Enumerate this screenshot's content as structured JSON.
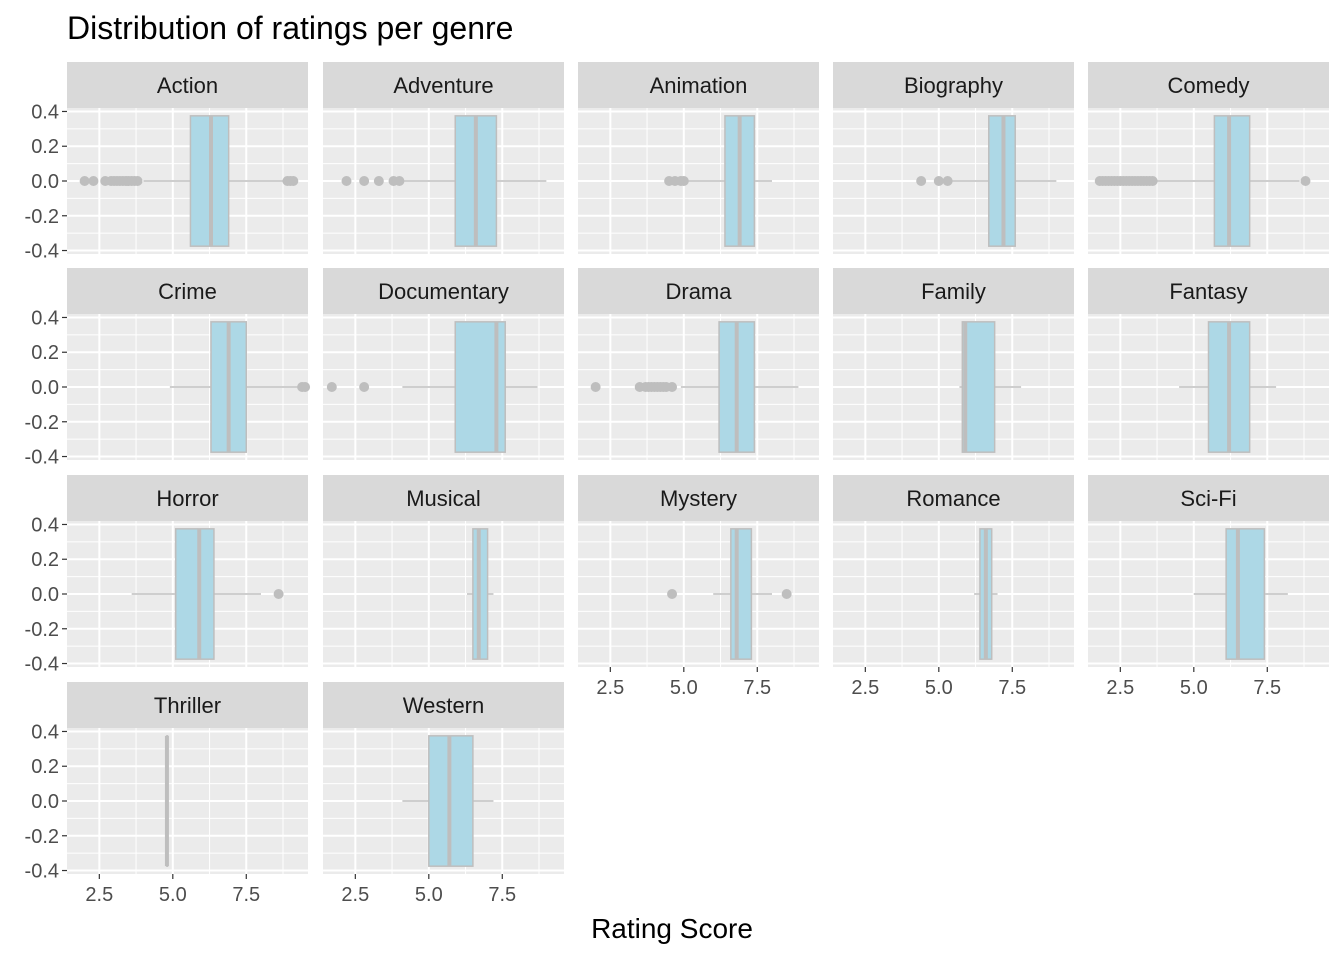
{
  "chart_data": {
    "type": "boxplot",
    "title": "Distribution of ratings per genre",
    "xlabel": "Rating Score",
    "ylabel": "",
    "xlim": [
      1.4,
      9.6
    ],
    "ylim": [
      -0.42,
      0.42
    ],
    "x_ticks": [
      "2.5",
      "5.0",
      "7.5"
    ],
    "x_tick_values": [
      2.5,
      5.0,
      7.5
    ],
    "y_ticks": [
      "0.4",
      "0.2",
      "0.0",
      "-0.2",
      "-0.4"
    ],
    "y_tick_values": [
      0.4,
      0.2,
      0.0,
      -0.2,
      -0.4
    ],
    "box_y_range": [
      -0.375,
      0.375
    ],
    "facets_ncol": 5,
    "grid": true,
    "colors": {
      "box_fill": "#add8e6",
      "box_line": "#bebebe",
      "panel_bg": "#ebebeb",
      "strip_bg": "#d9d9d9",
      "grid": "#ffffff"
    },
    "panels": [
      {
        "genre": "Action",
        "whisker_low": 4.0,
        "q1": 5.6,
        "median": 6.3,
        "q3": 6.9,
        "whisker_high": 8.8,
        "outliers": [
          2.0,
          2.3,
          2.7,
          2.9,
          3.0,
          3.1,
          3.2,
          3.3,
          3.4,
          3.5,
          3.6,
          3.7,
          3.8,
          8.9,
          9.0,
          9.1
        ]
      },
      {
        "genre": "Adventure",
        "whisker_low": 4.0,
        "q1": 5.9,
        "median": 6.6,
        "q3": 7.3,
        "whisker_high": 9.0,
        "outliers": [
          2.2,
          2.8,
          3.3,
          3.8,
          4.0
        ]
      },
      {
        "genre": "Animation",
        "whisker_low": 5.1,
        "q1": 6.4,
        "median": 6.9,
        "q3": 7.4,
        "whisker_high": 8.0,
        "outliers": [
          4.5,
          4.7,
          4.9,
          5.0
        ]
      },
      {
        "genre": "Biography",
        "whisker_low": 5.2,
        "q1": 6.7,
        "median": 7.2,
        "q3": 7.6,
        "whisker_high": 9.0,
        "outliers": [
          4.4,
          5.0,
          5.3
        ]
      },
      {
        "genre": "Comedy",
        "whisker_low": 3.7,
        "q1": 5.7,
        "median": 6.2,
        "q3": 6.9,
        "whisker_high": 8.6,
        "outliers": [
          1.8,
          1.9,
          2.0,
          2.1,
          2.2,
          2.3,
          2.4,
          2.5,
          2.6,
          2.7,
          2.8,
          2.9,
          3.0,
          3.1,
          3.2,
          3.3,
          3.4,
          3.5,
          3.6,
          8.8
        ]
      },
      {
        "genre": "Crime",
        "whisker_low": 4.9,
        "q1": 6.3,
        "median": 6.9,
        "q3": 7.5,
        "whisker_high": 9.3,
        "outliers": [
          9.4,
          9.5
        ]
      },
      {
        "genre": "Documentary",
        "whisker_low": 4.1,
        "q1": 5.9,
        "median": 7.3,
        "q3": 7.6,
        "whisker_high": 8.7,
        "outliers": [
          1.7,
          2.8
        ]
      },
      {
        "genre": "Drama",
        "whisker_low": 4.9,
        "q1": 6.2,
        "median": 6.8,
        "q3": 7.4,
        "whisker_high": 8.9,
        "outliers": [
          2.0,
          3.5,
          3.7,
          3.8,
          3.9,
          4.0,
          4.1,
          4.2,
          4.3,
          4.4,
          4.6
        ]
      },
      {
        "genre": "Family",
        "whisker_low": 5.7,
        "q1": 5.8,
        "median": 5.9,
        "q3": 6.9,
        "whisker_high": 7.8,
        "outliers": []
      },
      {
        "genre": "Fantasy",
        "whisker_low": 4.5,
        "q1": 5.5,
        "median": 6.2,
        "q3": 6.9,
        "whisker_high": 7.8,
        "outliers": []
      },
      {
        "genre": "Horror",
        "whisker_low": 3.6,
        "q1": 5.1,
        "median": 5.9,
        "q3": 6.4,
        "whisker_high": 8.0,
        "outliers": [
          8.6
        ]
      },
      {
        "genre": "Musical",
        "whisker_low": 6.3,
        "q1": 6.5,
        "median": 6.7,
        "q3": 7.0,
        "whisker_high": 7.2,
        "outliers": []
      },
      {
        "genre": "Mystery",
        "whisker_low": 6.0,
        "q1": 6.6,
        "median": 6.8,
        "q3": 7.3,
        "whisker_high": 8.0,
        "outliers": [
          4.6,
          8.5
        ]
      },
      {
        "genre": "Romance",
        "whisker_low": 6.2,
        "q1": 6.4,
        "median": 6.6,
        "q3": 6.8,
        "whisker_high": 7.0,
        "outliers": []
      },
      {
        "genre": "Sci-Fi",
        "whisker_low": 5.0,
        "q1": 6.1,
        "median": 6.5,
        "q3": 7.4,
        "whisker_high": 8.2,
        "outliers": []
      },
      {
        "genre": "Thriller",
        "whisker_low": 4.8,
        "q1": 4.8,
        "median": 4.8,
        "q3": 4.8,
        "whisker_high": 4.8,
        "outliers": []
      },
      {
        "genre": "Western",
        "whisker_low": 4.1,
        "q1": 5.0,
        "median": 5.7,
        "q3": 6.5,
        "whisker_high": 7.2,
        "outliers": []
      }
    ]
  }
}
